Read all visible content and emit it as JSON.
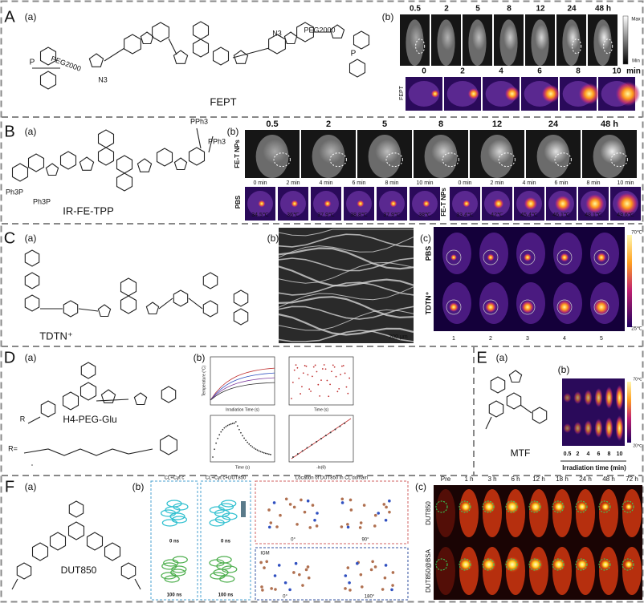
{
  "A": {
    "letter": "A",
    "part_a": "(a)",
    "part_b": "(b)",
    "compound": "FEPT",
    "groups": [
      "PEG2000",
      "PEG2000",
      "N3",
      "N3",
      "P",
      "P"
    ],
    "times": [
      "0.5",
      "2",
      "5",
      "8",
      "12",
      "24",
      "48 h"
    ],
    "scale": [
      "Max",
      "Min"
    ],
    "row_label": "FEPT",
    "minutes": [
      "0",
      "2",
      "4",
      "6",
      "8",
      "10",
      "min"
    ]
  },
  "B": {
    "letter": "B",
    "part_a": "(a)",
    "part_b": "(b)",
    "compound": "IR-FE-TPP",
    "groups": [
      "PPh3",
      "PPh3",
      "Ph3P",
      "Ph3P"
    ],
    "times": [
      "0.5",
      "2",
      "5",
      "8",
      "12",
      "24",
      "48 h"
    ],
    "row_label": "FE-T NPs",
    "group_labels": [
      "PBS",
      "FE-T NPs"
    ],
    "minutes": [
      "0 min",
      "2 min",
      "4 min",
      "6 min",
      "8 min",
      "10 min",
      "0 min",
      "2 min",
      "4 min",
      "6 min",
      "8 min",
      "10 min"
    ],
    "temperatures": [
      "34.5℃",
      "36℃",
      "37.9℃",
      "38.8℃",
      "37.9℃",
      "38℃",
      "33.4℃",
      "42℃",
      "45.4℃",
      "46.1℃",
      "48.1℃",
      "49.6℃"
    ]
  },
  "C": {
    "letter": "C",
    "part_a": "(a)",
    "part_b": "(b)",
    "part_c": "(c)",
    "compound": "TDTN⁺",
    "scale_bar": "200 μm",
    "row_labels": [
      "PBS",
      "TDTN⁺"
    ],
    "columns": [
      "1",
      "2",
      "3",
      "4",
      "5"
    ],
    "scale": [
      "70℃",
      "25℃"
    ]
  },
  "D": {
    "letter": "D",
    "part_a": "(a)",
    "part_b": "(b)",
    "compound": "H4-PEG-Glu",
    "groups": [
      "R",
      "R="
    ],
    "axis_labels": [
      "Temperature (°C)",
      "Irradiation Time (s)",
      "Time (s)",
      "Time (s)",
      "-ln(θ)"
    ]
  },
  "E": {
    "letter": "E",
    "part_a": "(a)",
    "part_b": "(b)",
    "compound": "MTF",
    "scale": [
      "70℃",
      "20℃"
    ],
    "times": [
      "0.5",
      "2",
      "4",
      "6",
      "8",
      "10"
    ],
    "axis_label": "Irradiation time (min)"
  },
  "F": {
    "letter": "F",
    "part_a": "(a)",
    "part_b": "(b)",
    "part_c": "(c)",
    "compound": "DUT850",
    "box_titles": [
      "CL+Cyt c",
      "CL+Cyt c+DUT850",
      "Location of DUT850 in CL domain",
      "IGM"
    ],
    "frames": [
      "0 ns",
      "0 ns",
      "100 ns",
      "100 ns"
    ],
    "angles": [
      "0°",
      "90°",
      "0°",
      "180°"
    ],
    "times": [
      "Pre",
      "1 h",
      "3 h",
      "6 h",
      "12 h",
      "18 h",
      "24 h",
      "48 h",
      "72 h"
    ],
    "row_labels": [
      "DUT850",
      "DUT850@BSA"
    ]
  }
}
